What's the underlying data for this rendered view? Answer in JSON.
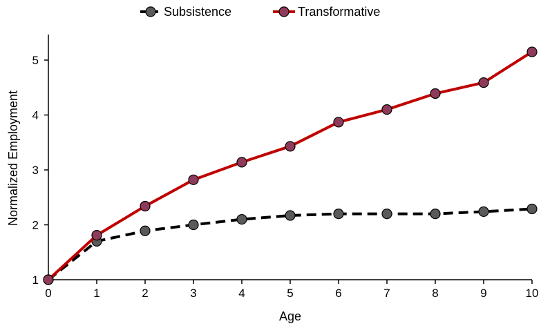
{
  "chart_data": {
    "type": "line",
    "title": "",
    "xlabel": "Age",
    "ylabel": "Normalized Employment",
    "x": [
      0,
      1,
      2,
      3,
      4,
      5,
      6,
      7,
      8,
      9,
      10
    ],
    "xlim": [
      0,
      10
    ],
    "ylim": [
      1,
      5.5
    ],
    "xticks": [
      0,
      1,
      2,
      3,
      4,
      5,
      6,
      7,
      8,
      9,
      10
    ],
    "yticks": [
      1,
      2,
      3,
      4,
      5
    ],
    "grid": false,
    "legend_position": "top-center",
    "series": [
      {
        "name": "Subsistence",
        "values": [
          1.0,
          1.7,
          1.89,
          2.0,
          2.1,
          2.17,
          2.2,
          2.2,
          2.2,
          2.24,
          2.29
        ],
        "line_color": "#000000",
        "line_style": "dashed",
        "marker_color": "#5a5a5a"
      },
      {
        "name": "Transformative",
        "values": [
          1.0,
          1.81,
          2.34,
          2.82,
          3.14,
          3.43,
          3.87,
          4.1,
          4.39,
          4.59,
          5.15
        ],
        "line_color": "#c00000",
        "line_style": "solid",
        "marker_color": "#8f3a5a"
      }
    ]
  }
}
